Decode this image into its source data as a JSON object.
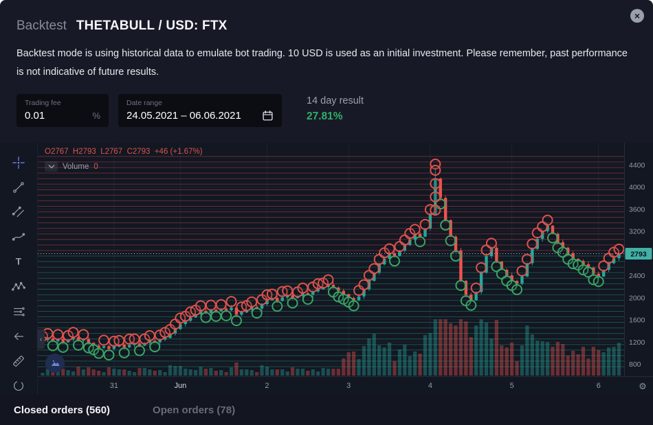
{
  "modal": {
    "title_prefix": "Backtest",
    "title": "THETABULL / USD: FTX",
    "close_glyph": "×",
    "description": "Backtest mode is using historical data to emulate bot trading. 10 USD is used as an initial investment. Please remember, past performance is not indicative of future results."
  },
  "controls": {
    "trading_fee": {
      "label": "Trading fee",
      "value": "0.01",
      "unit": "%"
    },
    "date_range": {
      "label": "Date range",
      "value": "24.05.2021 – 06.06.2021"
    },
    "result": {
      "label": "14 day result",
      "value": "27.81%"
    }
  },
  "tabs": [
    {
      "label": "Closed orders (560)"
    },
    {
      "label": "Open orders (78)"
    }
  ],
  "chart": {
    "legend_ohlc": "O2767  H2793  L2767  C2793  +46 (+1.67%)",
    "volume_label": "Volume",
    "volume_value": "0",
    "last_price_label": "2793",
    "price_ticks": [
      4400,
      4000,
      3600,
      3200,
      2400,
      2000,
      1600,
      1200,
      800
    ],
    "colors": {
      "up": "#26a69a",
      "down": "#ef5350",
      "sell_marker": "#e0524c",
      "buy_marker": "#3aa564",
      "sell_line": "#e0524e",
      "buy_line": "#2aa882",
      "badge_bg": "#41b0a5",
      "result_green": "#2fae68",
      "grid": "#1c2230",
      "axis_text": "#949aa6",
      "axis_line": "#272c3a"
    }
  },
  "chart_data": {
    "type": "candlestick",
    "title": "THETABULL / USD backtest chart, 24.05.2021 – 06.06.2021",
    "x_axis_labels": [
      {
        "i": 14,
        "label": "31",
        "major": false
      },
      {
        "i": 27,
        "label": "Jun",
        "major": true
      },
      {
        "i": 44,
        "label": "2",
        "major": false
      },
      {
        "i": 60,
        "label": "3",
        "major": false
      },
      {
        "i": 76,
        "label": "4",
        "major": false
      },
      {
        "i": 92,
        "label": "5",
        "major": false
      },
      {
        "i": 109,
        "label": "6",
        "major": false
      }
    ],
    "closes": [
      1230,
      1260,
      1210,
      1250,
      1190,
      1240,
      1280,
      1220,
      1250,
      1180,
      1130,
      1090,
      1120,
      1070,
      1110,
      1150,
      1100,
      1140,
      1170,
      1130,
      1180,
      1220,
      1190,
      1240,
      1270,
      1350,
      1430,
      1520,
      1580,
      1640,
      1700,
      1760,
      1720,
      1780,
      1750,
      1800,
      1770,
      1820,
      1690,
      1730,
      1780,
      1830,
      1800,
      1880,
      1950,
      1990,
      1940,
      2000,
      2040,
      1990,
      2030,
      2080,
      2050,
      2110,
      2150,
      2190,
      2230,
      2180,
      2120,
      2060,
      1990,
      1950,
      2020,
      2150,
      2300,
      2450,
      2600,
      2700,
      2800,
      2750,
      2850,
      2950,
      3050,
      3150,
      3100,
      3250,
      3500,
      4150,
      3800,
      3400,
      3100,
      2850,
      2300,
      2050,
      1950,
      2100,
      2450,
      2750,
      2900,
      2650,
      2500,
      2400,
      2300,
      2250,
      2380,
      2620,
      2880,
      3060,
      3200,
      3300,
      3150,
      3000,
      2900,
      2800,
      2700,
      2660,
      2600,
      2540,
      2430,
      2380,
      2500,
      2620,
      2710,
      2793
    ],
    "first_open": 1210,
    "peak_index": 77,
    "peak_high": 4350,
    "last_price": 2793,
    "ylim": [
      680,
      4780
    ],
    "price_grid_step": 400,
    "grid_orders": {
      "sell_levels": {
        "from": 2850,
        "to": 4550,
        "step": 100
      },
      "buy_levels": {
        "from": 750,
        "to": 2750,
        "step": 100
      }
    },
    "markers_rule": "sell circle above up candles, buy circle below down candles",
    "extra_sell_markers": [
      {
        "i": 77,
        "prices": [
          4300,
          4060,
          3820,
          3580
        ]
      }
    ]
  }
}
